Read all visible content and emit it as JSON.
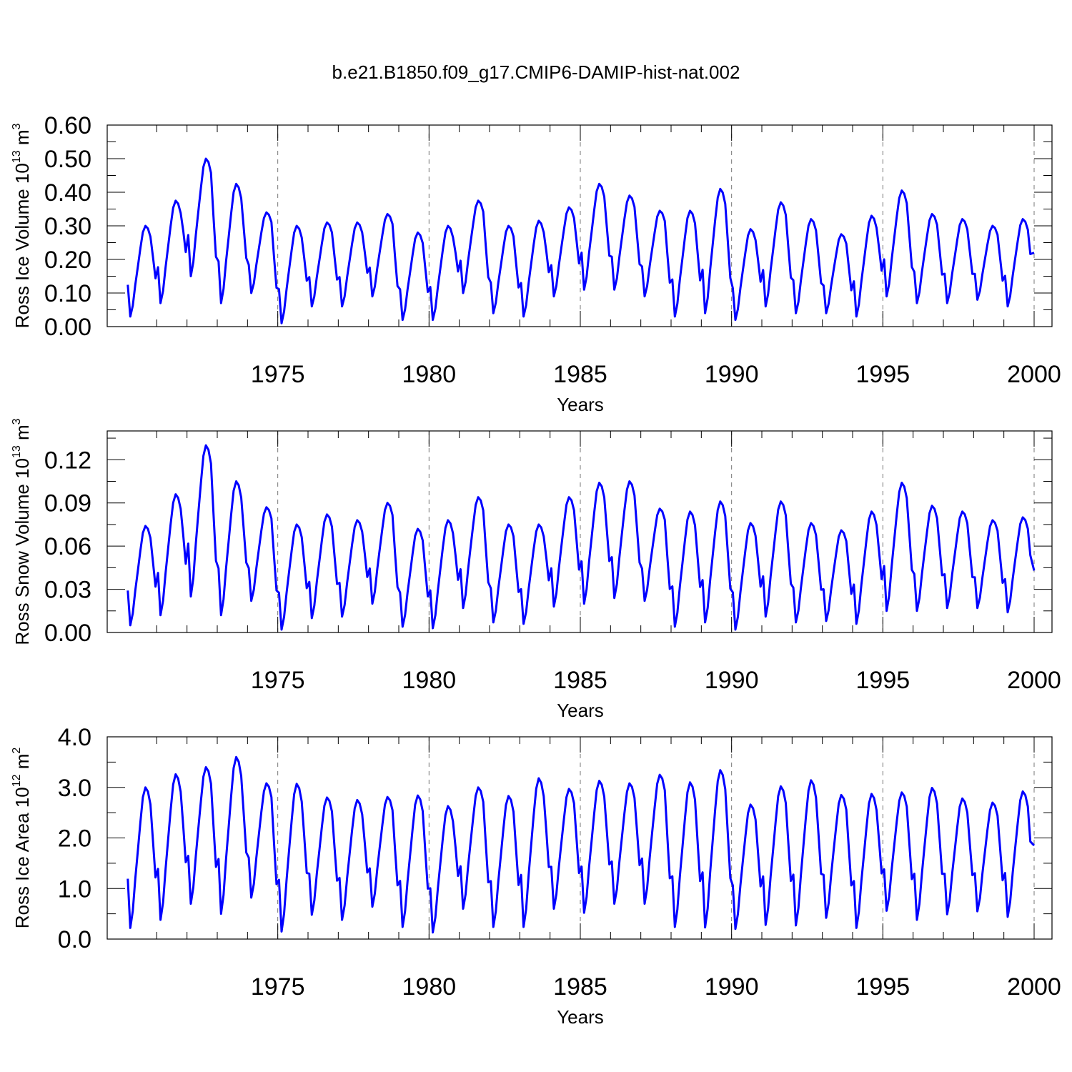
{
  "title": "b.e21.B1850.f09_g17.CMIP6-DAMIP-hist-nat.002",
  "line_color": "#0000ff",
  "chart_data": [
    {
      "type": "line",
      "ylabel": "Ross Ice Volume 10",
      "ylabel_exp": "13",
      "ylabel_unit": " m",
      "ylabel_unit_exp": "3",
      "xlabel": "Years",
      "xlim": [
        1970,
        2000
      ],
      "ylim": [
        0,
        0.6
      ],
      "yticks": [
        0,
        0.1,
        0.2,
        0.3,
        0.4,
        0.5,
        0.6
      ],
      "ytick_labels": [
        "0.00",
        "0.10",
        "0.20",
        "0.30",
        "0.40",
        "0.50",
        "0.60"
      ],
      "xticks": [
        1975,
        1980,
        1985,
        1990,
        1995,
        2000
      ],
      "xtick_labels": [
        "1975",
        "1980",
        "1985",
        "1990",
        "1995",
        "2000"
      ],
      "annual": [
        {
          "min": 0.03,
          "max": 0.3
        },
        {
          "min": 0.07,
          "max": 0.375
        },
        {
          "min": 0.15,
          "max": 0.5
        },
        {
          "min": 0.07,
          "max": 0.425
        },
        {
          "min": 0.1,
          "max": 0.34
        },
        {
          "min": 0.01,
          "max": 0.3
        },
        {
          "min": 0.06,
          "max": 0.31
        },
        {
          "min": 0.06,
          "max": 0.31
        },
        {
          "min": 0.09,
          "max": 0.335
        },
        {
          "min": 0.02,
          "max": 0.28
        },
        {
          "min": 0.02,
          "max": 0.3
        },
        {
          "min": 0.1,
          "max": 0.375
        },
        {
          "min": 0.04,
          "max": 0.3
        },
        {
          "min": 0.03,
          "max": 0.315
        },
        {
          "min": 0.09,
          "max": 0.355
        },
        {
          "min": 0.11,
          "max": 0.425
        },
        {
          "min": 0.11,
          "max": 0.39
        },
        {
          "min": 0.09,
          "max": 0.345
        },
        {
          "min": 0.03,
          "max": 0.345
        },
        {
          "min": 0.04,
          "max": 0.41
        },
        {
          "min": 0.02,
          "max": 0.29
        },
        {
          "min": 0.06,
          "max": 0.37
        },
        {
          "min": 0.04,
          "max": 0.32
        },
        {
          "min": 0.04,
          "max": 0.275
        },
        {
          "min": 0.03,
          "max": 0.33
        },
        {
          "min": 0.09,
          "max": 0.405
        },
        {
          "min": 0.07,
          "max": 0.335
        },
        {
          "min": 0.07,
          "max": 0.32
        },
        {
          "min": 0.08,
          "max": 0.3
        },
        {
          "min": 0.06,
          "max": 0.32
        }
      ],
      "end_value": 0.22
    },
    {
      "type": "line",
      "ylabel": "Ross Snow Volume 10",
      "ylabel_exp": "13",
      "ylabel_unit": " m",
      "ylabel_unit_exp": "3",
      "xlabel": "Years",
      "xlim": [
        1970,
        2000
      ],
      "ylim": [
        0,
        0.14
      ],
      "yticks": [
        0,
        0.03,
        0.06,
        0.09,
        0.12
      ],
      "ytick_labels": [
        "0.00",
        "0.03",
        "0.06",
        "0.09",
        "0.12"
      ],
      "xticks": [
        1975,
        1980,
        1985,
        1990,
        1995,
        2000
      ],
      "xtick_labels": [
        "1975",
        "1980",
        "1985",
        "1990",
        "1995",
        "2000"
      ],
      "annual": [
        {
          "min": 0.005,
          "max": 0.074
        },
        {
          "min": 0.012,
          "max": 0.096
        },
        {
          "min": 0.025,
          "max": 0.13
        },
        {
          "min": 0.012,
          "max": 0.105
        },
        {
          "min": 0.022,
          "max": 0.087
        },
        {
          "min": 0.002,
          "max": 0.075
        },
        {
          "min": 0.01,
          "max": 0.082
        },
        {
          "min": 0.011,
          "max": 0.078
        },
        {
          "min": 0.02,
          "max": 0.09
        },
        {
          "min": 0.004,
          "max": 0.072
        },
        {
          "min": 0.003,
          "max": 0.078
        },
        {
          "min": 0.017,
          "max": 0.094
        },
        {
          "min": 0.007,
          "max": 0.075
        },
        {
          "min": 0.006,
          "max": 0.075
        },
        {
          "min": 0.018,
          "max": 0.094
        },
        {
          "min": 0.02,
          "max": 0.104
        },
        {
          "min": 0.024,
          "max": 0.105
        },
        {
          "min": 0.022,
          "max": 0.086
        },
        {
          "min": 0.004,
          "max": 0.084
        },
        {
          "min": 0.007,
          "max": 0.091
        },
        {
          "min": 0.002,
          "max": 0.076
        },
        {
          "min": 0.011,
          "max": 0.091
        },
        {
          "min": 0.007,
          "max": 0.076
        },
        {
          "min": 0.008,
          "max": 0.071
        },
        {
          "min": 0.006,
          "max": 0.084
        },
        {
          "min": 0.015,
          "max": 0.104
        },
        {
          "min": 0.015,
          "max": 0.088
        },
        {
          "min": 0.017,
          "max": 0.084
        },
        {
          "min": 0.017,
          "max": 0.078
        },
        {
          "min": 0.014,
          "max": 0.08
        }
      ],
      "end_value": 0.043
    },
    {
      "type": "line",
      "ylabel": "Ross Ice Area 10",
      "ylabel_exp": "12",
      "ylabel_unit": " m",
      "ylabel_unit_exp": "2",
      "xlabel": "Years",
      "xlim": [
        1970,
        2000
      ],
      "ylim": [
        0,
        4.0
      ],
      "yticks": [
        0,
        1,
        2,
        3,
        4
      ],
      "ytick_labels": [
        "0.0",
        "1.0",
        "2.0",
        "3.0",
        "4.0"
      ],
      "xticks": [
        1975,
        1980,
        1985,
        1990,
        1995,
        2000
      ],
      "xtick_labels": [
        "1975",
        "1980",
        "1985",
        "1990",
        "1995",
        "2000"
      ],
      "annual": [
        {
          "min": 0.22,
          "max": 3.0
        },
        {
          "min": 0.38,
          "max": 3.26
        },
        {
          "min": 0.7,
          "max": 3.4
        },
        {
          "min": 0.5,
          "max": 3.6
        },
        {
          "min": 0.82,
          "max": 3.08
        },
        {
          "min": 0.15,
          "max": 3.07
        },
        {
          "min": 0.48,
          "max": 2.8
        },
        {
          "min": 0.38,
          "max": 2.75
        },
        {
          "min": 0.64,
          "max": 2.81
        },
        {
          "min": 0.24,
          "max": 2.84
        },
        {
          "min": 0.13,
          "max": 2.63
        },
        {
          "min": 0.6,
          "max": 3.0
        },
        {
          "min": 0.24,
          "max": 2.83
        },
        {
          "min": 0.24,
          "max": 3.18
        },
        {
          "min": 0.6,
          "max": 2.97
        },
        {
          "min": 0.52,
          "max": 3.13
        },
        {
          "min": 0.7,
          "max": 3.08
        },
        {
          "min": 0.7,
          "max": 3.25
        },
        {
          "min": 0.24,
          "max": 3.1
        },
        {
          "min": 0.23,
          "max": 3.34
        },
        {
          "min": 0.2,
          "max": 2.66
        },
        {
          "min": 0.28,
          "max": 3.02
        },
        {
          "min": 0.27,
          "max": 3.14
        },
        {
          "min": 0.42,
          "max": 2.85
        },
        {
          "min": 0.22,
          "max": 2.87
        },
        {
          "min": 0.56,
          "max": 2.9
        },
        {
          "min": 0.38,
          "max": 2.99
        },
        {
          "min": 0.49,
          "max": 2.78
        },
        {
          "min": 0.55,
          "max": 2.7
        },
        {
          "min": 0.44,
          "max": 2.92
        }
      ],
      "end_value": 1.85
    }
  ]
}
